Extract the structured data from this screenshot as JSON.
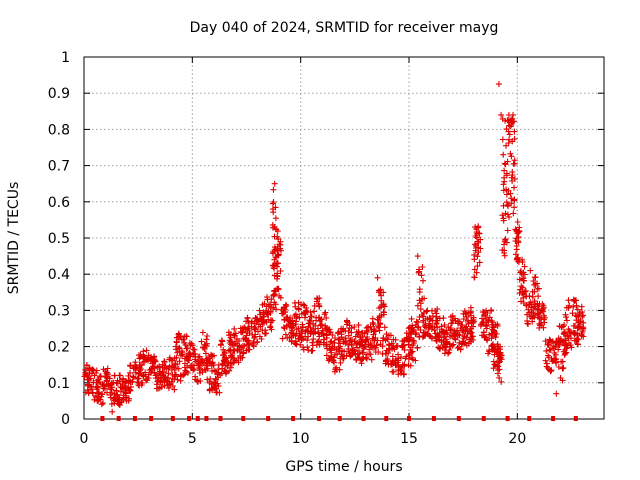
{
  "chart_data": {
    "type": "scatter",
    "title": "Day 040 of 2024, SRMTID for receiver mayg",
    "xlabel": "GPS time / hours",
    "ylabel": "SRMTID / TECUs",
    "xlim": [
      0,
      24
    ],
    "ylim": [
      0,
      1
    ],
    "x_ticks": [
      0,
      5,
      10,
      15,
      20
    ],
    "x_tick_labels": [
      "0",
      "5",
      "10",
      "15",
      "20"
    ],
    "y_ticks": [
      0,
      0.1,
      0.2,
      0.3,
      0.4,
      0.5,
      0.6,
      0.7,
      0.8,
      0.9,
      1
    ],
    "y_tick_labels": [
      "0",
      "0.1",
      "0.2",
      "0.3",
      "0.4",
      "0.5",
      "0.6",
      "0.7",
      "0.8",
      "0.9",
      "1"
    ],
    "grid": true,
    "marker": "+",
    "color": "#e00000",
    "envelope_description": "Dense SRMTID samples, approx. one per 30 s, summarized as [hour, low, high] bands",
    "envelope": [
      [
        0.0,
        0.07,
        0.15
      ],
      [
        0.3,
        0.05,
        0.14
      ],
      [
        0.6,
        0.04,
        0.12
      ],
      [
        0.9,
        0.07,
        0.14
      ],
      [
        1.2,
        0.04,
        0.12
      ],
      [
        1.5,
        0.03,
        0.13
      ],
      [
        1.8,
        0.05,
        0.13
      ],
      [
        2.1,
        0.07,
        0.16
      ],
      [
        2.4,
        0.08,
        0.18
      ],
      [
        2.7,
        0.1,
        0.2
      ],
      [
        3.0,
        0.12,
        0.18
      ],
      [
        3.3,
        0.08,
        0.15
      ],
      [
        3.6,
        0.09,
        0.16
      ],
      [
        3.9,
        0.08,
        0.17
      ],
      [
        4.2,
        0.1,
        0.25
      ],
      [
        4.5,
        0.12,
        0.23
      ],
      [
        4.8,
        0.13,
        0.21
      ],
      [
        5.1,
        0.1,
        0.18
      ],
      [
        5.4,
        0.1,
        0.24
      ],
      [
        5.7,
        0.07,
        0.18
      ],
      [
        6.0,
        0.07,
        0.15
      ],
      [
        6.3,
        0.12,
        0.22
      ],
      [
        6.6,
        0.13,
        0.24
      ],
      [
        6.9,
        0.15,
        0.25
      ],
      [
        7.2,
        0.16,
        0.27
      ],
      [
        7.5,
        0.18,
        0.28
      ],
      [
        7.8,
        0.2,
        0.28
      ],
      [
        8.1,
        0.22,
        0.32
      ],
      [
        8.4,
        0.24,
        0.34
      ],
      [
        8.7,
        0.3,
        0.64
      ],
      [
        8.9,
        0.33,
        0.52
      ],
      [
        9.1,
        0.22,
        0.32
      ],
      [
        9.4,
        0.21,
        0.28
      ],
      [
        9.7,
        0.2,
        0.33
      ],
      [
        10.0,
        0.19,
        0.32
      ],
      [
        10.3,
        0.17,
        0.3
      ],
      [
        10.6,
        0.2,
        0.34
      ],
      [
        10.9,
        0.2,
        0.3
      ],
      [
        11.2,
        0.16,
        0.25
      ],
      [
        11.5,
        0.13,
        0.24
      ],
      [
        11.8,
        0.15,
        0.25
      ],
      [
        12.1,
        0.17,
        0.28
      ],
      [
        12.4,
        0.16,
        0.26
      ],
      [
        12.7,
        0.14,
        0.24
      ],
      [
        13.0,
        0.16,
        0.26
      ],
      [
        13.3,
        0.18,
        0.28
      ],
      [
        13.6,
        0.18,
        0.38
      ],
      [
        13.9,
        0.14,
        0.24
      ],
      [
        14.2,
        0.13,
        0.22
      ],
      [
        14.5,
        0.12,
        0.22
      ],
      [
        14.8,
        0.14,
        0.26
      ],
      [
        15.1,
        0.16,
        0.28
      ],
      [
        15.4,
        0.22,
        0.42
      ],
      [
        15.7,
        0.22,
        0.3
      ],
      [
        16.0,
        0.21,
        0.31
      ],
      [
        16.3,
        0.19,
        0.28
      ],
      [
        16.6,
        0.18,
        0.27
      ],
      [
        16.9,
        0.2,
        0.29
      ],
      [
        17.2,
        0.19,
        0.28
      ],
      [
        17.5,
        0.2,
        0.3
      ],
      [
        17.8,
        0.21,
        0.31
      ],
      [
        18.0,
        0.38,
        0.54
      ],
      [
        18.3,
        0.22,
        0.3
      ],
      [
        18.6,
        0.18,
        0.31
      ],
      [
        18.9,
        0.14,
        0.27
      ],
      [
        19.1,
        0.1,
        0.2
      ],
      [
        19.3,
        0.45,
        0.84
      ],
      [
        19.6,
        0.55,
        0.84
      ],
      [
        19.9,
        0.43,
        0.55
      ],
      [
        20.1,
        0.32,
        0.44
      ],
      [
        20.4,
        0.26,
        0.34
      ],
      [
        20.7,
        0.28,
        0.4
      ],
      [
        21.0,
        0.24,
        0.32
      ],
      [
        21.3,
        0.13,
        0.22
      ],
      [
        21.6,
        0.15,
        0.22
      ],
      [
        21.9,
        0.1,
        0.27
      ],
      [
        22.2,
        0.18,
        0.33
      ],
      [
        22.5,
        0.2,
        0.33
      ],
      [
        22.8,
        0.22,
        0.32
      ]
    ],
    "outliers": [
      [
        1.3,
        0.02
      ],
      [
        19.15,
        0.925
      ],
      [
        19.25,
        0.84
      ],
      [
        18.05,
        0.53
      ],
      [
        13.55,
        0.39
      ],
      [
        15.4,
        0.45
      ],
      [
        8.8,
        0.65
      ],
      [
        19.8,
        0.84
      ],
      [
        20.6,
        0.41
      ],
      [
        21.8,
        0.07
      ]
    ],
    "zero_markers_x": [
      0.85,
      1.6,
      2.35,
      3.1,
      4.1,
      4.85,
      5.25,
      5.65,
      6.3,
      7.35,
      8.5,
      9.65,
      10.85,
      11.8,
      12.9,
      13.95,
      15.0,
      16.15,
      17.3,
      18.45,
      19.55,
      20.55,
      21.65,
      22.7
    ]
  }
}
